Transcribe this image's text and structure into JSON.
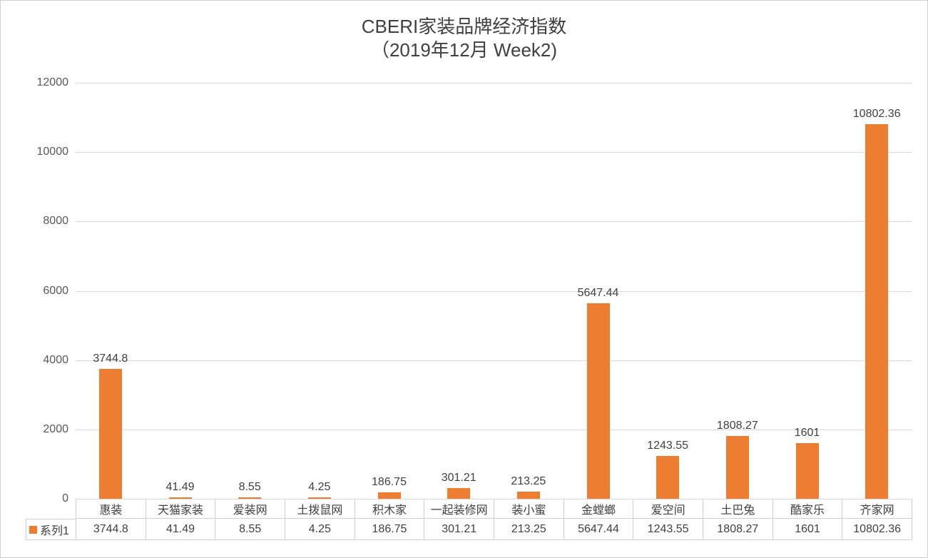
{
  "title": {
    "line1": "CBERI家装品牌经济指数",
    "line2": "（2019年12月 Week2)"
  },
  "legend": {
    "label": "系列1"
  },
  "colors": {
    "bar": "#ED7D31",
    "gridline": "#D9D9D9",
    "table_border": "#D0CECE",
    "axis_text": "#595959",
    "label_text": "#404040",
    "title_text": "#404040"
  },
  "chart_data": {
    "type": "bar",
    "title": "CBERI家装品牌经济指数（2019年12月 Week2)",
    "categories": [
      "惠装",
      "天猫家装",
      "爱装网",
      "土拨鼠网",
      "积木家",
      "一起装修网",
      "装小蜜",
      "金螳螂",
      "爱空间",
      "土巴兔",
      "酷家乐",
      "齐家网"
    ],
    "series": [
      {
        "name": "系列1",
        "values": [
          3744.8,
          41.49,
          8.55,
          4.25,
          186.75,
          301.21,
          213.25,
          5647.44,
          1243.55,
          1808.27,
          1601,
          10802.36
        ],
        "value_labels": [
          "3744.8",
          "41.49",
          "8.55",
          "4.25",
          "186.75",
          "301.21",
          "213.25",
          "5647.44",
          "1243.55",
          "1808.27",
          "1601",
          "10802.36"
        ]
      }
    ],
    "xlabel": "",
    "ylabel": "",
    "ylim": [
      0,
      12000
    ],
    "yticks": [
      0,
      2000,
      4000,
      6000,
      8000,
      10000,
      12000
    ],
    "grid": true,
    "legend_position": "bottom-table",
    "data_table_shown": true
  }
}
